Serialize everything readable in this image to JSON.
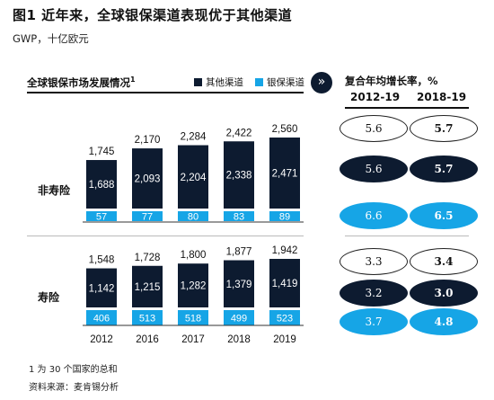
{
  "title": "图1 近年来，全球银保渠道表现优于其他渠道",
  "unit": "GWP，十亿欧元",
  "left_heading": "全球银保市场发展情况",
  "left_heading_sup": "1",
  "legend": [
    {
      "label": "其他渠道",
      "color": "#0d1b30"
    },
    {
      "label": "银保渠道",
      "color": "#16a5e6"
    }
  ],
  "arrow_icon": "»",
  "right_heading": "复合年均增长率，%",
  "periods": [
    "2012-19",
    "2018-19"
  ],
  "row_labels": {
    "nonlife": "非寿险",
    "life": "寿险"
  },
  "chart_data": {
    "type": "bar",
    "categories": [
      "2012",
      "2016",
      "2017",
      "2018",
      "2019"
    ],
    "panels": [
      {
        "name": "非寿险",
        "totals": [
          1745,
          2170,
          2284,
          2422,
          2560
        ],
        "series": [
          {
            "name": "其他渠道",
            "values": [
              1688,
              2093,
              2204,
              2338,
              2471
            ]
          },
          {
            "name": "银保渠道",
            "values": [
              57,
              77,
              80,
              83,
              89
            ]
          }
        ]
      },
      {
        "name": "寿险",
        "totals": [
          1548,
          1728,
          1800,
          1877,
          1942
        ],
        "series": [
          {
            "name": "其他渠道",
            "values": [
              1142,
              1215,
              1282,
              1379,
              1419
            ]
          },
          {
            "name": "银保渠道",
            "values": [
              406,
              513,
              518,
              499,
              523
            ]
          }
        ]
      }
    ],
    "cagr": {
      "nonlife": {
        "total": [
          "5.6",
          "5.7"
        ],
        "other": [
          "5.6",
          "5.7"
        ],
        "banca": [
          "6.6",
          "6.5"
        ]
      },
      "life": {
        "total": [
          "3.3",
          "3.4"
        ],
        "other": [
          "3.2",
          "3.0"
        ],
        "banca": [
          "3.7",
          "4.8"
        ]
      }
    }
  },
  "footnotes": [
    "1 为 30 个国家的总和",
    "资料来源：麦肯锡分析"
  ]
}
